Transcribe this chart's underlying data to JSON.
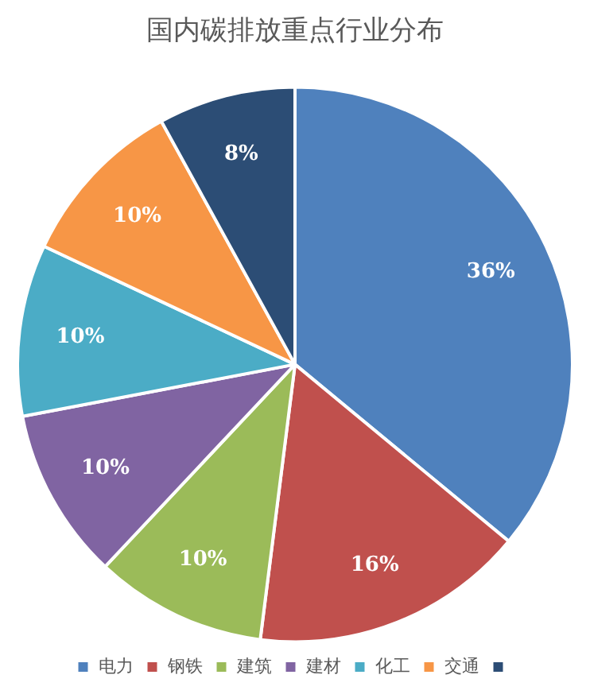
{
  "chart_data": {
    "type": "pie",
    "title": "国内碳排放重点行业分布",
    "categories": [
      "电力",
      "钢铁",
      "建筑",
      "建材",
      "化工",
      "交通",
      null
    ],
    "values": [
      36,
      16,
      10,
      10,
      10,
      10,
      8
    ],
    "value_labels": [
      "36%",
      "16%",
      "10%",
      "10%",
      "10%",
      "10%",
      "8%"
    ],
    "colors": [
      "#4f81bd",
      "#c0504d",
      "#9bbb59",
      "#8064a2",
      "#4bacc6",
      "#f79646",
      "#2c4d75"
    ],
    "legend": "bottom"
  }
}
